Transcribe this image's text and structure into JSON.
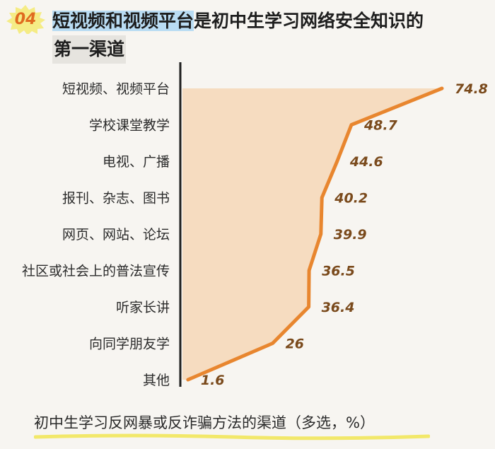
{
  "badge": "04",
  "title": {
    "highlight": "短视频和视频平台",
    "rest": "是初中生学习网络安全知识的",
    "line2": "第一渠道"
  },
  "footer": "初中生学习反网暴或反诈骗方法的渠道（多选，%）",
  "colors": {
    "line": "#e8862f",
    "area": "#f6dcc0",
    "value_text": "#7a4a1c",
    "badge": "#f5ec85",
    "highlight": "#b9dcf3"
  },
  "chart_data": {
    "type": "line",
    "orientation": "horizontal",
    "categories": [
      "短视频、视频平台",
      "学校课堂教学",
      "电视、广播",
      "报刊、杂志、图书",
      "网页、网站、论坛",
      "社区或社会上的普法宣传",
      "听家长讲",
      "向同学朋友学",
      "其他"
    ],
    "values": [
      74.8,
      48.7,
      44.6,
      40.2,
      39.9,
      36.5,
      36.4,
      26,
      1.6
    ],
    "unit": "%"
  }
}
